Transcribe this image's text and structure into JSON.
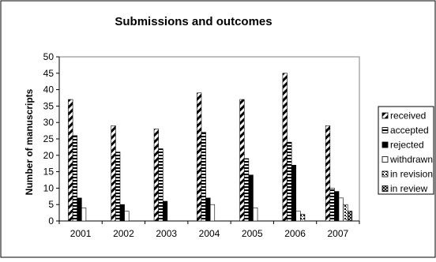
{
  "chart_data": {
    "type": "bar",
    "title": "Submissions and outcomes",
    "xlabel": "",
    "ylabel": "Number of manuscripts",
    "ylim": [
      0,
      50
    ],
    "yticks": [
      0,
      5,
      10,
      15,
      20,
      25,
      30,
      35,
      40,
      45,
      50
    ],
    "grid": false,
    "legend_position": "right",
    "categories": [
      "2001",
      "2002",
      "2003",
      "2004",
      "2005",
      "2006",
      "2007"
    ],
    "series": [
      {
        "name": "received",
        "pattern": "diagonal-stripes",
        "values": [
          37,
          29,
          28,
          39,
          37,
          45,
          29
        ]
      },
      {
        "name": "accepted",
        "pattern": "horizontal-stripes",
        "values": [
          26,
          21,
          22,
          27,
          19,
          24,
          10
        ]
      },
      {
        "name": "rejected",
        "pattern": "solid-black",
        "values": [
          7,
          5,
          6,
          7,
          14,
          17,
          9
        ]
      },
      {
        "name": "withdrawn",
        "pattern": "solid-white",
        "values": [
          4,
          3,
          0,
          5,
          4,
          3,
          7
        ]
      },
      {
        "name": "in revision",
        "pattern": "dotted-dark",
        "values": [
          0,
          0,
          0,
          0,
          0,
          2,
          5
        ]
      },
      {
        "name": "in review",
        "pattern": "crosshatch",
        "values": [
          0,
          0,
          0,
          0,
          0,
          0,
          3
        ]
      }
    ]
  }
}
